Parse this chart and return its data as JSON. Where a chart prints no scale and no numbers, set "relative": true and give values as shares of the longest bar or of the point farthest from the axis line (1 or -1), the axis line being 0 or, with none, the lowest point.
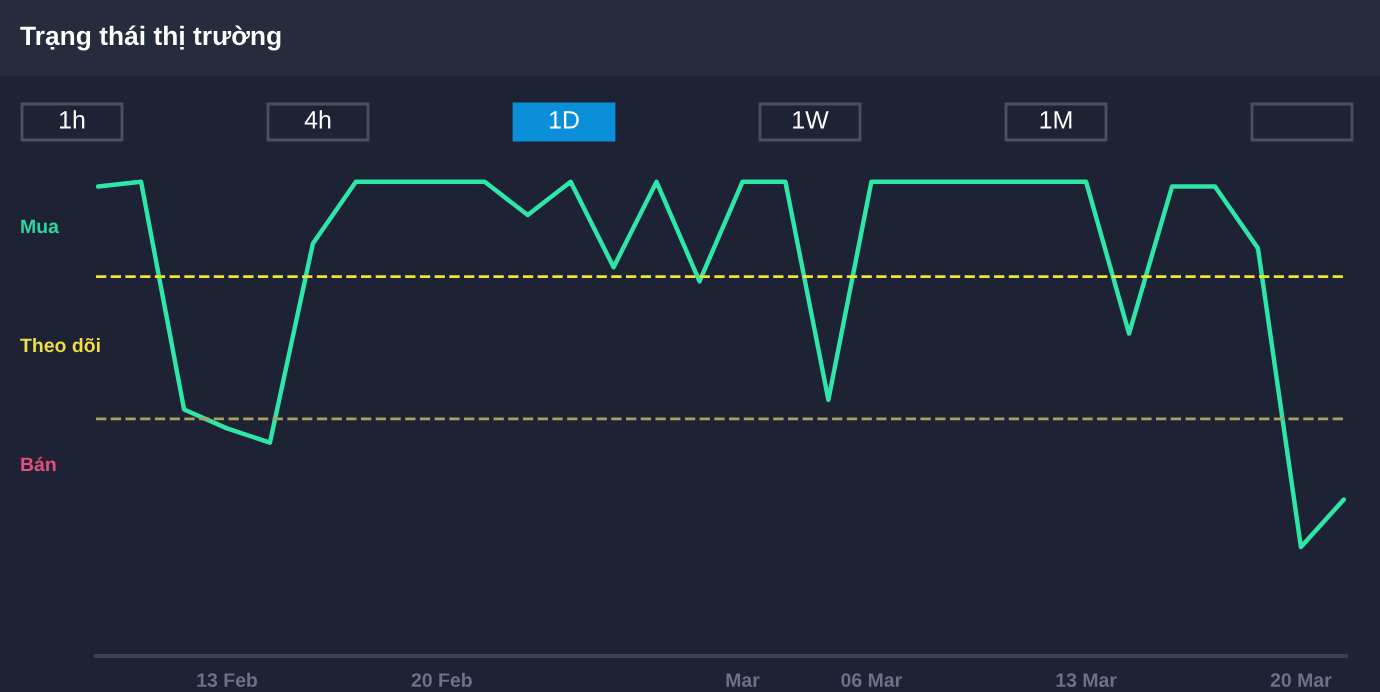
{
  "chart_data": {
    "type": "line",
    "title": "Trạng thái thị trường",
    "annotations": [
      "1h",
      "4h",
      "1D",
      "1W",
      "1M",
      "Mua",
      "Theo dõi",
      "Bán"
    ],
    "categories": [
      null,
      null,
      null,
      "13 Feb",
      null,
      null,
      null,
      null,
      "20 Feb",
      null,
      null,
      null,
      null,
      null,
      null,
      "Mar",
      null,
      null,
      "06 Mar",
      null,
      null,
      null,
      null,
      "13 Mar",
      null,
      null,
      null,
      null,
      "20 Mar",
      null
    ],
    "series": [
      {
        "color": "#2ee6a6",
        "values": [
          0.99,
          1.0,
          0.52,
          0.48,
          0.45,
          0.87,
          1.0,
          1.0,
          1.0,
          1.0,
          0.93,
          1.0,
          0.82,
          1.0,
          0.79,
          1.0,
          1.0,
          0.54,
          1.0,
          1.0,
          1.0,
          1.0,
          1.0,
          1.0,
          0.68,
          0.99,
          0.99,
          0.86,
          0.23,
          0.33
        ]
      }
    ],
    "relative": true,
    "ref_lines": [
      {
        "axis": "y",
        "value": 0.8,
        "label": null,
        "color": "#f2e530",
        "line_style": "dashed"
      },
      {
        "axis": "y",
        "value": 0.5,
        "label": null,
        "color": "#a8a25a",
        "line_style": "dashed"
      }
    ],
    "grid": false,
    "legend": false,
    "marker": "none",
    "line_style": "solid"
  }
}
